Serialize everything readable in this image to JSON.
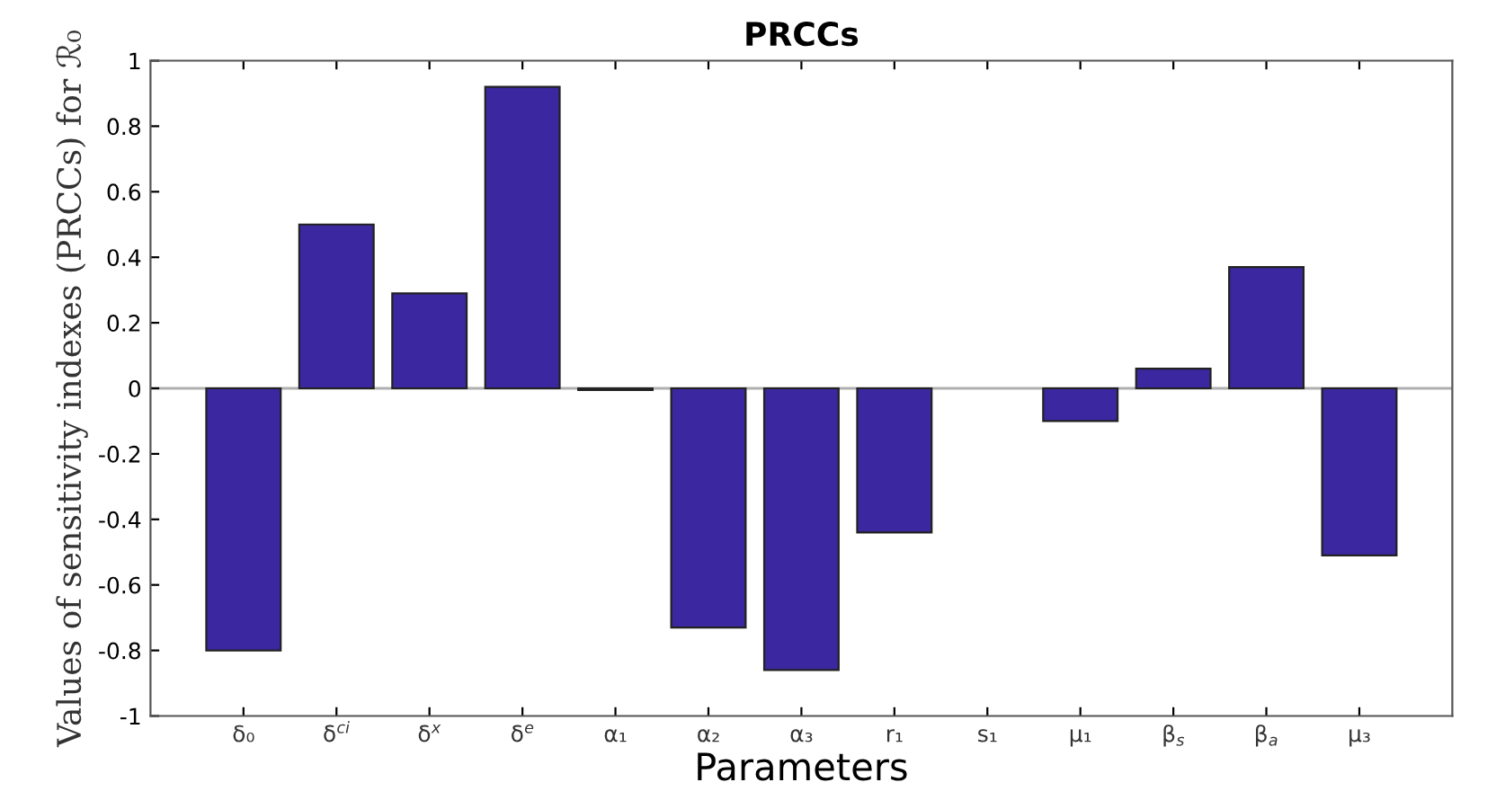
{
  "chart_data": {
    "type": "bar",
    "title": "PRCCs",
    "xlabel": "Parameters",
    "ylabel": "Values of sensitivity indexes (PRCCs) for ℛ₀",
    "categories": [
      "δ₀",
      "δ$^{ci}$",
      "δ$^{x}$",
      "δ$^{e}$",
      "α₁",
      "α₂",
      "α₃",
      "r₁",
      "s₁",
      "μ₁",
      "β$_{s}$",
      "β$_{a}$",
      "μ₃"
    ],
    "values": [
      -0.8,
      0.5,
      0.29,
      0.92,
      -0.005,
      -0.73,
      -0.86,
      -0.44,
      0,
      -0.1,
      0.06,
      0.37,
      -0.51
    ],
    "color": "#3b27a0",
    "ylim": [
      -1,
      1
    ],
    "yticks": [
      -1,
      -0.8,
      -0.6,
      -0.4,
      -0.2,
      0,
      0.2,
      0.4,
      0.6,
      0.8,
      1
    ],
    "ref_lines": [
      {
        "axis": "y",
        "value": 0,
        "color": "#b0b0b0"
      }
    ],
    "grid": false,
    "legend": false
  }
}
